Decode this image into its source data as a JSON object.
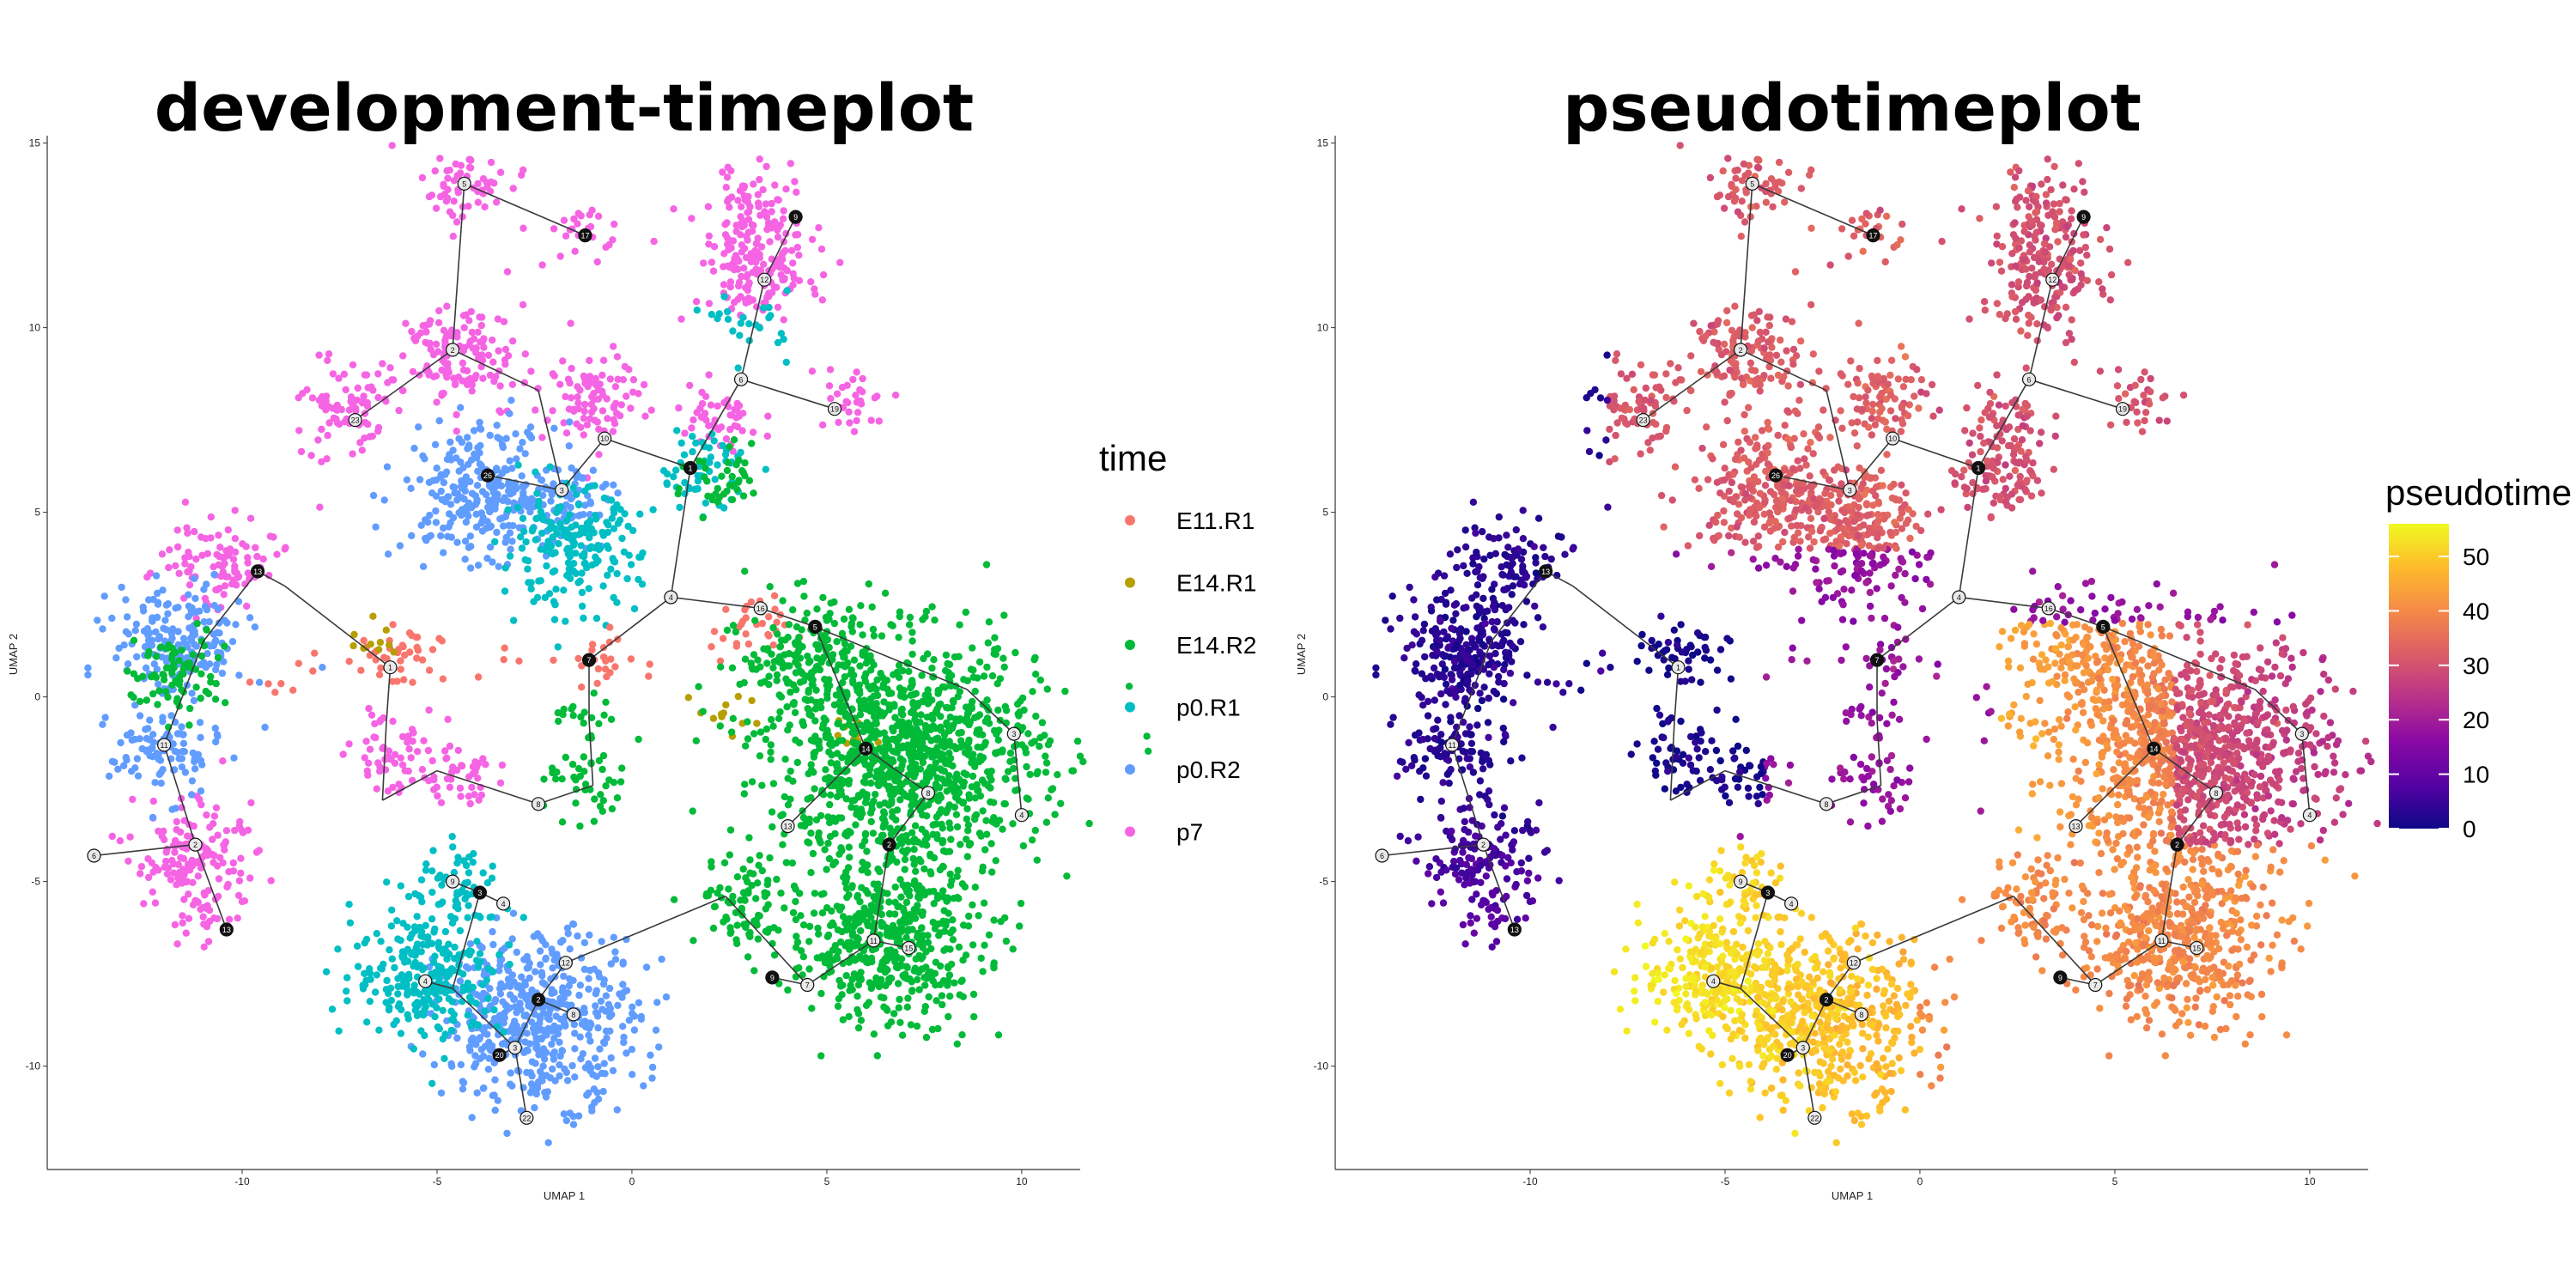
{
  "chart_data": [
    {
      "type": "scatter",
      "title": "development-timeplot",
      "xlabel": "UMAP 1",
      "ylabel": "UMAP 2",
      "xlim": [
        -15,
        11.5
      ],
      "ylim": [
        -12.8,
        15.2
      ],
      "xticks": [
        -10,
        -5,
        0,
        5,
        10
      ],
      "yticks": [
        -10,
        -5,
        0,
        5,
        10,
        15
      ],
      "grid": false,
      "color_by": "time",
      "legend_title": "time",
      "legend_position": "right",
      "categories": [
        {
          "name": "E11.R1",
          "color": "#F8766D"
        },
        {
          "name": "E14.R1",
          "color": "#B79F00"
        },
        {
          "name": "E14.R2",
          "color": "#00BA38"
        },
        {
          "name": "p0.R1",
          "color": "#00BFC4"
        },
        {
          "name": "p0.R2",
          "color": "#619CFF"
        },
        {
          "name": "p7",
          "color": "#F564E3"
        }
      ],
      "clusters": [
        {
          "time": "p7",
          "center": [
            -4.2,
            13.8
          ],
          "n": 60
        },
        {
          "time": "p7",
          "center": [
            -1.2,
            12.6
          ],
          "n": 25
        },
        {
          "time": "p7",
          "center": [
            -4.5,
            9.2
          ],
          "n": 140
        },
        {
          "time": "p7",
          "center": [
            -7.2,
            7.9
          ],
          "n": 80
        },
        {
          "time": "p7",
          "center": [
            -1.0,
            8.0
          ],
          "n": 90
        },
        {
          "time": "p7",
          "center": [
            3.3,
            11.6
          ],
          "n": 140
        },
        {
          "time": "p7",
          "center": [
            3.2,
            13.2
          ],
          "n": 80
        },
        {
          "time": "p7",
          "center": [
            5.6,
            8.0
          ],
          "n": 35
        },
        {
          "time": "p7",
          "center": [
            -10.5,
            3.6
          ],
          "n": 100
        },
        {
          "time": "p7",
          "center": [
            -11.3,
            -4.3
          ],
          "n": 140
        },
        {
          "time": "p7",
          "center": [
            -11.0,
            -6.0
          ],
          "n": 25
        },
        {
          "time": "p7",
          "center": [
            -6.0,
            -1.5
          ],
          "n": 60
        },
        {
          "time": "p7",
          "center": [
            -4.5,
            -2.2
          ],
          "n": 40
        },
        {
          "time": "p7",
          "center": [
            2.2,
            7.4
          ],
          "n": 50
        },
        {
          "time": "p0.R2",
          "center": [
            -3.9,
            5.6
          ],
          "n": 260
        },
        {
          "time": "p0.R2",
          "center": [
            -11.6,
            1.5
          ],
          "n": 180
        },
        {
          "time": "p0.R2",
          "center": [
            -12.0,
            -1.5
          ],
          "n": 100
        },
        {
          "time": "p0.R2",
          "center": [
            -2.4,
            -8.7
          ],
          "n": 520
        },
        {
          "time": "p0.R2",
          "center": [
            -1.8,
            5.3
          ],
          "n": 80
        },
        {
          "time": "p0.R1",
          "center": [
            -1.6,
            4.0
          ],
          "n": 200
        },
        {
          "time": "p0.R1",
          "center": [
            -5.2,
            -7.5
          ],
          "n": 260
        },
        {
          "time": "p0.R1",
          "center": [
            -4.5,
            -5.2
          ],
          "n": 60
        },
        {
          "time": "p0.R1",
          "center": [
            3.1,
            10.1
          ],
          "n": 25
        },
        {
          "time": "p0.R1",
          "center": [
            1.8,
            6.2
          ],
          "n": 60
        },
        {
          "time": "E14.R2",
          "center": [
            7.0,
            -1.6
          ],
          "n": 1100
        },
        {
          "time": "E14.R2",
          "center": [
            6.5,
            -6.6
          ],
          "n": 500
        },
        {
          "time": "E14.R2",
          "center": [
            4.5,
            1.3
          ],
          "n": 160
        },
        {
          "time": "E14.R2",
          "center": [
            3.0,
            -5.6
          ],
          "n": 80
        },
        {
          "time": "E14.R2",
          "center": [
            -11.7,
            0.6
          ],
          "n": 80
        },
        {
          "time": "E14.R2",
          "center": [
            -1.1,
            -2.5
          ],
          "n": 40
        },
        {
          "time": "E14.R2",
          "center": [
            -1.2,
            -0.6
          ],
          "n": 20
        },
        {
          "time": "E14.R2",
          "center": [
            2.3,
            5.8
          ],
          "n": 40
        },
        {
          "time": "E11.R1",
          "center": [
            -6.0,
            1.0
          ],
          "n": 40
        },
        {
          "time": "E11.R1",
          "center": [
            -0.9,
            1.0
          ],
          "n": 25
        },
        {
          "time": "E11.R1",
          "center": [
            3.0,
            1.8
          ],
          "n": 30
        },
        {
          "time": "E11.R1",
          "center": [
            -8.9,
            0.5
          ],
          "n": 8
        },
        {
          "time": "E11.R1",
          "center": [
            -3.3,
            0.7
          ],
          "n": 4
        },
        {
          "time": "E14.R1",
          "center": [
            2.5,
            -0.6
          ],
          "n": 12
        },
        {
          "time": "E14.R1",
          "center": [
            -6.7,
            1.7
          ],
          "n": 10
        },
        {
          "time": "E14.R1",
          "center": [
            5.5,
            -1.2
          ],
          "n": 10
        }
      ]
    },
    {
      "type": "scatter",
      "title": "pseudotimeplot",
      "xlabel": "UMAP 1",
      "ylabel": "UMAP 2",
      "xlim": [
        -15,
        11.5
      ],
      "ylim": [
        -12.8,
        15.2
      ],
      "xticks": [
        -10,
        -5,
        0,
        5,
        10
      ],
      "yticks": [
        -10,
        -5,
        0,
        5,
        10,
        15
      ],
      "grid": false,
      "color_by": "pseudotime",
      "legend_title": "pseudotime",
      "legend_position": "right",
      "colorscale": "plasma",
      "colorbar_range": [
        0,
        56
      ],
      "colorbar_ticks": [
        0,
        10,
        20,
        30,
        40,
        50
      ]
    }
  ],
  "trajectory": {
    "edges": [
      [
        [
          -4.3,
          13.9
        ],
        [
          -1.2,
          12.5
        ]
      ],
      [
        [
          -4.3,
          13.9
        ],
        [
          -4.6,
          9.4
        ]
      ],
      [
        [
          -4.6,
          9.4
        ],
        [
          -7.1,
          7.5
        ]
      ],
      [
        [
          -4.6,
          9.4
        ],
        [
          -2.4,
          8.3
        ]
      ],
      [
        [
          -2.4,
          8.3
        ],
        [
          -1.8,
          5.6
        ]
      ],
      [
        [
          -1.8,
          5.6
        ],
        [
          -3.7,
          6.0
        ]
      ],
      [
        [
          -1.8,
          5.6
        ],
        [
          -0.7,
          7.0
        ]
      ],
      [
        [
          -0.7,
          7.0
        ],
        [
          1.5,
          6.2
        ]
      ],
      [
        [
          1.5,
          6.2
        ],
        [
          2.8,
          8.6
        ]
      ],
      [
        [
          2.8,
          8.6
        ],
        [
          3.4,
          11.3
        ]
      ],
      [
        [
          3.4,
          11.3
        ],
        [
          4.2,
          13.0
        ]
      ],
      [
        [
          2.8,
          8.6
        ],
        [
          5.2,
          7.8
        ]
      ],
      [
        [
          1.5,
          6.2
        ],
        [
          1.0,
          2.7
        ]
      ],
      [
        [
          1.0,
          2.7
        ],
        [
          -1.1,
          1.0
        ]
      ],
      [
        [
          -1.1,
          1.0
        ],
        [
          -1.1,
          -0.6
        ]
      ],
      [
        [
          -1.1,
          -0.6
        ],
        [
          -1.0,
          -2.4
        ]
      ],
      [
        [
          -1.0,
          -2.4
        ],
        [
          -2.4,
          -2.9
        ]
      ],
      [
        [
          -2.4,
          -2.9
        ],
        [
          -5.0,
          -2.0
        ]
      ],
      [
        [
          -5.0,
          -2.0
        ],
        [
          -6.4,
          -2.8
        ]
      ],
      [
        [
          -6.4,
          -2.8
        ],
        [
          -6.3,
          -0.7
        ]
      ],
      [
        [
          -6.3,
          -0.7
        ],
        [
          -6.2,
          0.8
        ]
      ],
      [
        [
          -6.2,
          0.8
        ],
        [
          -8.9,
          3.0
        ]
      ],
      [
        [
          -8.9,
          3.0
        ],
        [
          -9.6,
          3.4
        ]
      ],
      [
        [
          -9.6,
          3.4
        ],
        [
          -11.0,
          1.5
        ]
      ],
      [
        [
          -11.0,
          1.5
        ],
        [
          -12.0,
          -1.3
        ]
      ],
      [
        [
          -12.0,
          -1.3
        ],
        [
          -11.2,
          -4.0
        ]
      ],
      [
        [
          -11.2,
          -4.0
        ],
        [
          -13.8,
          -4.3
        ]
      ],
      [
        [
          -11.2,
          -4.0
        ],
        [
          -10.4,
          -6.3
        ]
      ],
      [
        [
          1.0,
          2.7
        ],
        [
          3.3,
          2.4
        ]
      ],
      [
        [
          3.3,
          2.4
        ],
        [
          4.7,
          1.9
        ]
      ],
      [
        [
          4.7,
          1.9
        ],
        [
          8.6,
          0.2
        ]
      ],
      [
        [
          8.6,
          0.2
        ],
        [
          9.8,
          -1.0
        ]
      ],
      [
        [
          9.8,
          -1.0
        ],
        [
          10.0,
          -3.2
        ]
      ],
      [
        [
          4.7,
          1.9
        ],
        [
          6.0,
          -1.4
        ]
      ],
      [
        [
          6.0,
          -1.4
        ],
        [
          4.0,
          -3.5
        ]
      ],
      [
        [
          6.0,
          -1.4
        ],
        [
          7.6,
          -2.6
        ]
      ],
      [
        [
          7.6,
          -2.6
        ],
        [
          6.6,
          -4.0
        ]
      ],
      [
        [
          6.6,
          -4.0
        ],
        [
          6.2,
          -6.6
        ]
      ],
      [
        [
          6.2,
          -6.6
        ],
        [
          4.5,
          -7.8
        ]
      ],
      [
        [
          6.2,
          -6.6
        ],
        [
          7.1,
          -6.8
        ]
      ],
      [
        [
          4.5,
          -7.8
        ],
        [
          3.6,
          -7.6
        ]
      ],
      [
        [
          4.5,
          -7.8
        ],
        [
          2.4,
          -5.4
        ]
      ],
      [
        [
          2.4,
          -5.4
        ],
        [
          -1.7,
          -7.2
        ]
      ],
      [
        [
          -1.7,
          -7.2
        ],
        [
          -2.4,
          -8.2
        ]
      ],
      [
        [
          -2.4,
          -8.2
        ],
        [
          -3.0,
          -9.5
        ]
      ],
      [
        [
          -3.0,
          -9.5
        ],
        [
          -2.7,
          -11.4
        ]
      ],
      [
        [
          -3.0,
          -9.5
        ],
        [
          -3.4,
          -9.7
        ]
      ],
      [
        [
          -2.4,
          -8.2
        ],
        [
          -1.5,
          -8.6
        ]
      ],
      [
        [
          -3.0,
          -9.5
        ],
        [
          -4.6,
          -7.9
        ]
      ],
      [
        [
          -4.6,
          -7.9
        ],
        [
          -5.3,
          -7.7
        ]
      ],
      [
        [
          -4.6,
          -7.9
        ],
        [
          -3.9,
          -5.3
        ]
      ],
      [
        [
          -3.9,
          -5.3
        ],
        [
          -4.6,
          -5.0
        ]
      ],
      [
        [
          -3.9,
          -5.3
        ],
        [
          -3.3,
          -5.6
        ]
      ]
    ],
    "nodes": [
      {
        "xy": [
          -4.3,
          13.9
        ],
        "label": "5"
      },
      {
        "xy": [
          -1.2,
          12.5
        ],
        "label": "17"
      },
      {
        "xy": [
          -4.6,
          9.4
        ],
        "label": "2"
      },
      {
        "xy": [
          -7.1,
          7.5
        ],
        "label": "23"
      },
      {
        "xy": [
          -3.7,
          6.0
        ],
        "label": "26"
      },
      {
        "xy": [
          -1.8,
          5.6
        ],
        "label": "3"
      },
      {
        "xy": [
          -0.7,
          7.0
        ],
        "label": "10"
      },
      {
        "xy": [
          1.5,
          6.2
        ],
        "label": "1"
      },
      {
        "xy": [
          2.8,
          8.6
        ],
        "label": "6"
      },
      {
        "xy": [
          3.4,
          11.3
        ],
        "label": "12"
      },
      {
        "xy": [
          4.2,
          13.0
        ],
        "label": "9"
      },
      {
        "xy": [
          5.2,
          7.8
        ],
        "label": "19"
      },
      {
        "xy": [
          1.0,
          2.7
        ],
        "label": "4"
      },
      {
        "xy": [
          -1.1,
          1.0
        ],
        "label": "7"
      },
      {
        "xy": [
          -2.4,
          -2.9
        ],
        "label": "8"
      },
      {
        "xy": [
          -6.2,
          0.8
        ],
        "label": "1"
      },
      {
        "xy": [
          -9.6,
          3.4
        ],
        "label": "13"
      },
      {
        "xy": [
          -12.0,
          -1.3
        ],
        "label": "11"
      },
      {
        "xy": [
          -13.8,
          -4.3
        ],
        "label": "6"
      },
      {
        "xy": [
          -10.4,
          -6.3
        ],
        "label": "13"
      },
      {
        "xy": [
          -11.2,
          -4.0
        ],
        "label": "2"
      },
      {
        "xy": [
          3.3,
          2.4
        ],
        "label": "16"
      },
      {
        "xy": [
          4.7,
          1.9
        ],
        "label": "5"
      },
      {
        "xy": [
          9.8,
          -1.0
        ],
        "label": "3"
      },
      {
        "xy": [
          10.0,
          -3.2
        ],
        "label": "4"
      },
      {
        "xy": [
          6.0,
          -1.4
        ],
        "label": "14"
      },
      {
        "xy": [
          4.0,
          -3.5
        ],
        "label": "13"
      },
      {
        "xy": [
          7.6,
          -2.6
        ],
        "label": "8"
      },
      {
        "xy": [
          6.6,
          -4.0
        ],
        "label": "2"
      },
      {
        "xy": [
          6.2,
          -6.6
        ],
        "label": "11"
      },
      {
        "xy": [
          4.5,
          -7.8
        ],
        "label": "7"
      },
      {
        "xy": [
          3.6,
          -7.6
        ],
        "label": "9"
      },
      {
        "xy": [
          7.1,
          -6.8
        ],
        "label": "15"
      },
      {
        "xy": [
          -1.7,
          -7.2
        ],
        "label": "12"
      },
      {
        "xy": [
          -2.4,
          -8.2
        ],
        "label": "2"
      },
      {
        "xy": [
          -3.0,
          -9.5
        ],
        "label": "3"
      },
      {
        "xy": [
          -2.7,
          -11.4
        ],
        "label": "22"
      },
      {
        "xy": [
          -3.4,
          -9.7
        ],
        "label": "20"
      },
      {
        "xy": [
          -1.5,
          -8.6
        ],
        "label": "8"
      },
      {
        "xy": [
          -5.3,
          -7.7
        ],
        "label": "4"
      },
      {
        "xy": [
          -3.9,
          -5.3
        ],
        "label": "3"
      },
      {
        "xy": [
          -4.6,
          -5.0
        ],
        "label": "9"
      },
      {
        "xy": [
          -3.3,
          -5.6
        ],
        "label": "4"
      }
    ]
  }
}
